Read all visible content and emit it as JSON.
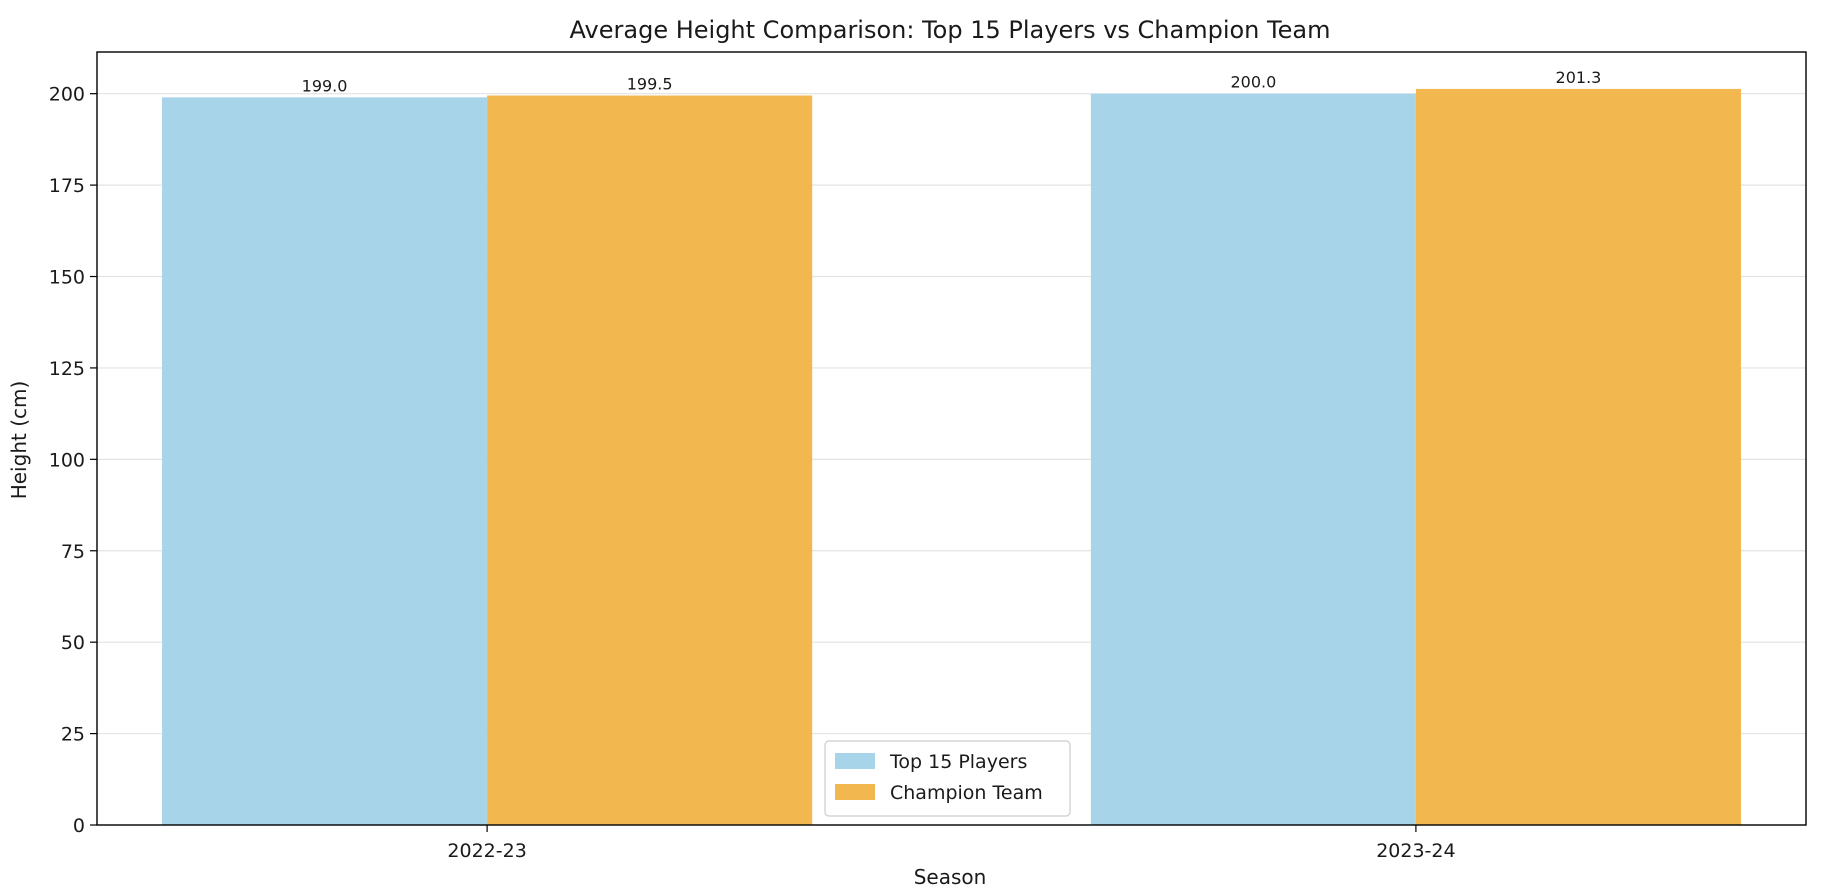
{
  "chart_data": {
    "type": "bar",
    "title": "Average Height Comparison: Top 15 Players vs Champion Team",
    "xlabel": "Season",
    "ylabel": "Height (cm)",
    "categories": [
      "2022-23",
      "2023-24"
    ],
    "series": [
      {
        "name": "Top 15 Players",
        "values": [
          199.0,
          200.0
        ],
        "labels": [
          "199.0",
          "200.0"
        ],
        "color": "#a8d4ea"
      },
      {
        "name": "Champion Team",
        "values": [
          199.5,
          201.3
        ],
        "labels": [
          "199.5",
          "201.3"
        ],
        "color": "#f2b84f"
      }
    ],
    "ylim": [
      0,
      211.4
    ],
    "yticks": [
      0,
      25,
      50,
      75,
      100,
      125,
      150,
      175,
      200
    ],
    "ytick_labels": [
      "0",
      "25",
      "50",
      "75",
      "100",
      "125",
      "150",
      "175",
      "200"
    ],
    "grid": "y",
    "legend_position": "bottom-center"
  }
}
